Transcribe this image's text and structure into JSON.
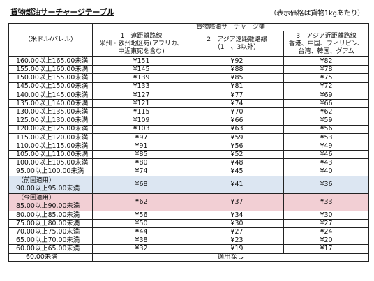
{
  "title": "貨物燃油サーチャージテーブル",
  "note": "（表示価格は貨物1kgあたり）",
  "header": {
    "group_label": "貨物燃油サーチャージ額",
    "range_label": "（米ドル/バレル）",
    "columns": [
      {
        "line1": "1　遠距離路線",
        "line2": "米州・欧州地区宛(アフリカ、",
        "line3": "中近東宛を含む)"
      },
      {
        "line1": "2　アジア遠距離路線",
        "line2": "（1　、3以外）",
        "line3": ""
      },
      {
        "line1": "3　アジア近距離路線",
        "line2": "香港、中国、フィリピン、",
        "line3": "台湾、韓国、グアム"
      }
    ]
  },
  "rows_top": [
    {
      "range": "160.00以上165.00未満",
      "c1": "¥151",
      "c2": "¥92",
      "c3": "¥82"
    },
    {
      "range": "155.00以上160.00未満",
      "c1": "¥145",
      "c2": "¥88",
      "c3": "¥78"
    },
    {
      "range": "150.00以上155.00未満",
      "c1": "¥139",
      "c2": "¥85",
      "c3": "¥75"
    },
    {
      "range": "145.00以上150.00未満",
      "c1": "¥133",
      "c2": "¥81",
      "c3": "¥72"
    },
    {
      "range": "140.00以上145.00未満",
      "c1": "¥127",
      "c2": "¥77",
      "c3": "¥69"
    },
    {
      "range": "135.00以上140.00未満",
      "c1": "¥121",
      "c2": "¥74",
      "c3": "¥66"
    },
    {
      "range": "130.00以上135.00未満",
      "c1": "¥115",
      "c2": "¥70",
      "c3": "¥62"
    },
    {
      "range": "125.00以上130.00未満",
      "c1": "¥109",
      "c2": "¥66",
      "c3": "¥59"
    },
    {
      "range": "120.00以上125.00未満",
      "c1": "¥103",
      "c2": "¥63",
      "c3": "¥56"
    },
    {
      "range": "115.00以上120.00未満",
      "c1": "¥97",
      "c2": "¥59",
      "c3": "¥53"
    },
    {
      "range": "110.00以上115.00未満",
      "c1": "¥91",
      "c2": "¥56",
      "c3": "¥49"
    },
    {
      "range": "105.00以上110.00未満",
      "c1": "¥85",
      "c2": "¥52",
      "c3": "¥46"
    },
    {
      "range": "100.00以上105.00未満",
      "c1": "¥80",
      "c2": "¥48",
      "c3": "¥43"
    },
    {
      "range": "95.00以上100.00未満",
      "c1": "¥74",
      "c2": "¥45",
      "c3": "¥40"
    }
  ],
  "row_prev": {
    "tag": "（前回適用）",
    "range": "90.00以上95.00未満",
    "c1": "¥68",
    "c2": "¥41",
    "c3": "¥36"
  },
  "row_curr": {
    "tag": "（今回適用）",
    "range": "85.00以上90.00未満",
    "c1": "¥62",
    "c2": "¥37",
    "c3": "¥33"
  },
  "rows_bottom": [
    {
      "range": "80.00以上85.00未満",
      "c1": "¥56",
      "c2": "¥34",
      "c3": "¥30"
    },
    {
      "range": "75.00以上80.00未満",
      "c1": "¥50",
      "c2": "¥30",
      "c3": "¥27"
    },
    {
      "range": "70.00以上75.00未満",
      "c1": "¥44",
      "c2": "¥27",
      "c3": "¥24"
    },
    {
      "range": "65.00以上70.00未満",
      "c1": "¥38",
      "c2": "¥23",
      "c3": "¥20"
    },
    {
      "range": "60.00以上65.00未満",
      "c1": "¥32",
      "c2": "¥19",
      "c3": "¥17"
    }
  ],
  "row_last": {
    "range": "60.00未満",
    "value": "適用なし"
  },
  "colors": {
    "previous_row": "#dce6f2",
    "current_row": "#f2cfd4"
  }
}
